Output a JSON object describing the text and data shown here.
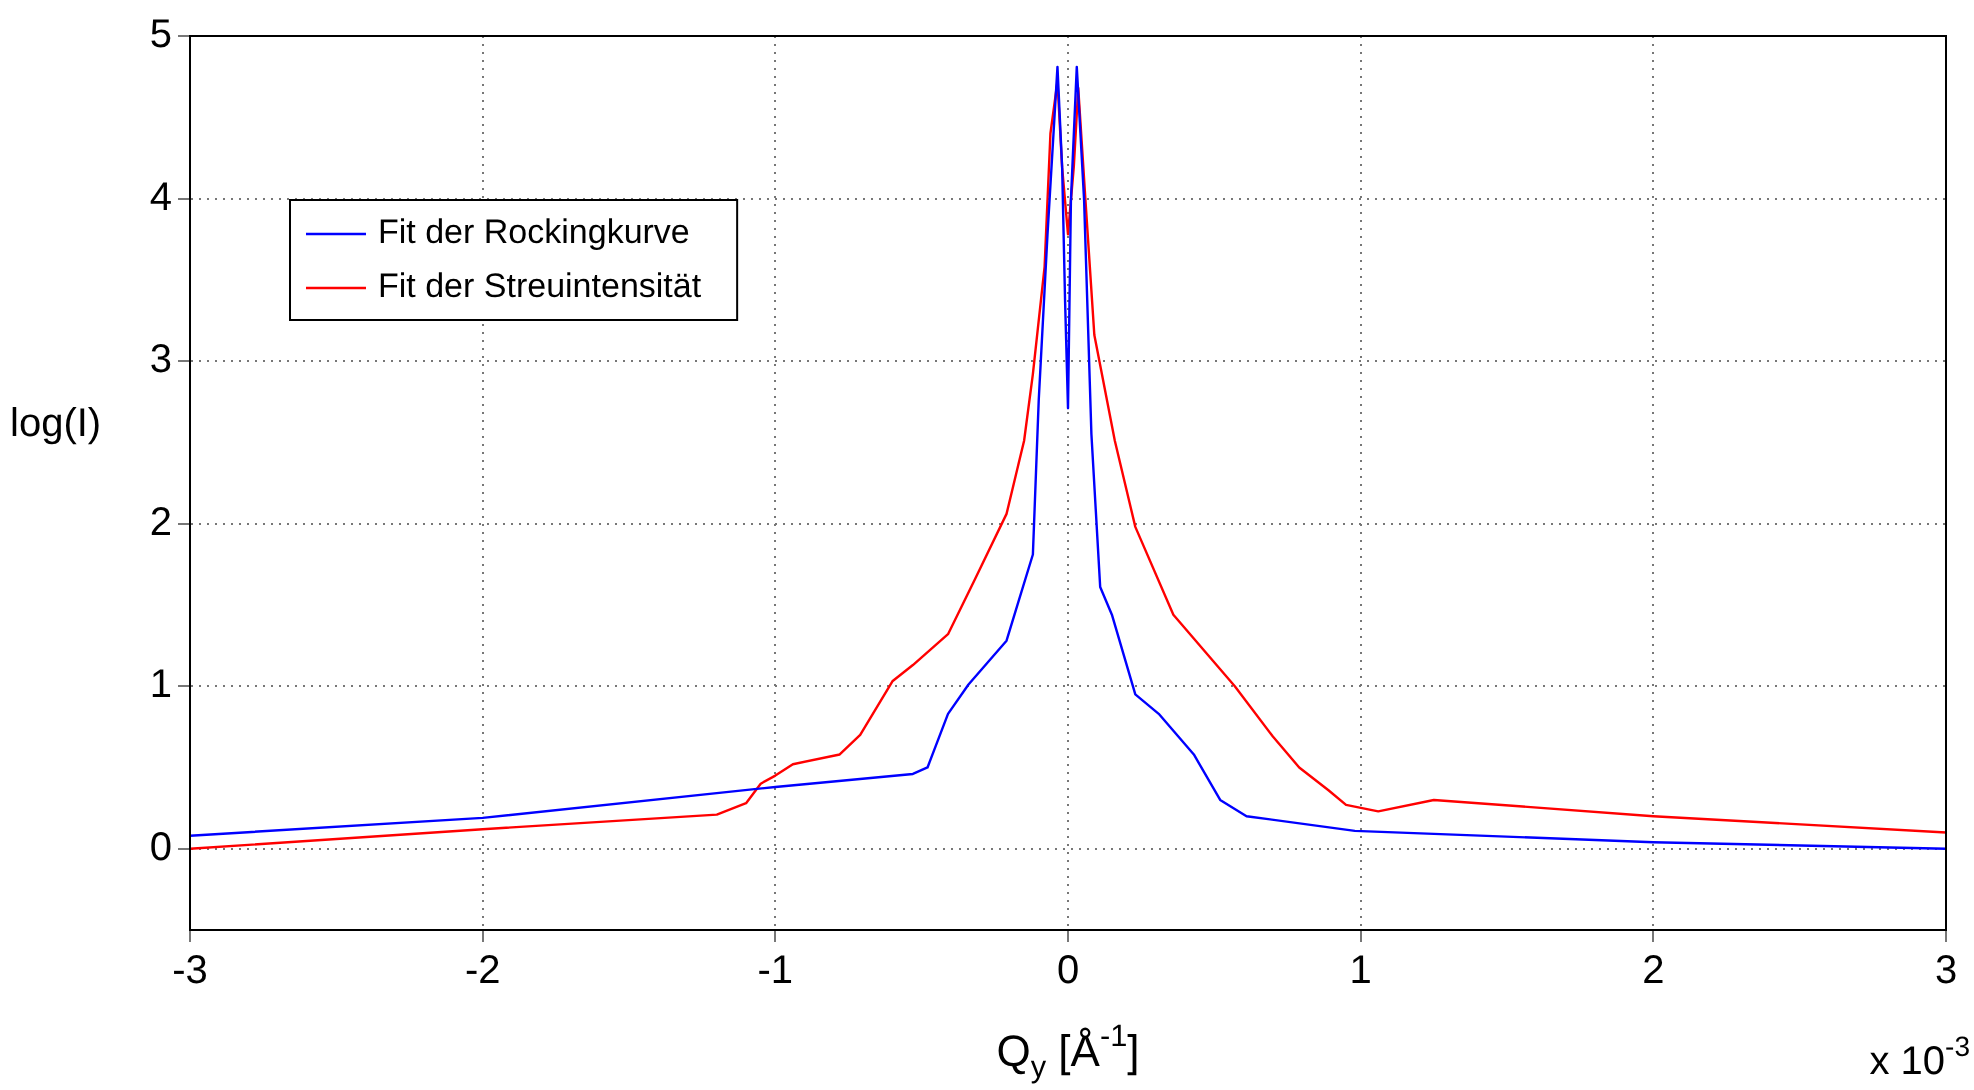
{
  "chart_data": {
    "type": "line",
    "xlabel": "Q$_{y}$ [Å$^{-1}$]",
    "ylabel": "log(I)",
    "annotations": [
      "x 10$^{-3}$"
    ],
    "xlim": [
      -3,
      3
    ],
    "xticks": [
      -3,
      -2,
      -1,
      0,
      1,
      2,
      3
    ],
    "ylim": [
      -0.5,
      5
    ],
    "yticks": [
      0,
      1,
      2,
      3,
      4,
      5
    ],
    "grid": true,
    "legend": "top left",
    "marker": "none",
    "line_style": "solid",
    "series": [
      {
        "name": "Fit der Rockingkurve",
        "color": "#0000ff",
        "x": [
          -3,
          -2,
          -1,
          -0.53,
          -0.48,
          -0.41,
          -0.34,
          -0.21,
          -0.12,
          -0.1,
          -0.07,
          -0.036,
          -0.02,
          -0.01,
          0,
          0.01,
          0.03,
          0.055,
          0.08,
          0.11,
          0.15,
          0.23,
          0.31,
          0.43,
          0.52,
          0.61,
          0.98,
          2,
          3
        ],
        "values": [
          0.08,
          0.19,
          0.38,
          0.46,
          0.5,
          0.83,
          1.01,
          1.28,
          1.81,
          2.76,
          3.78,
          4.81,
          4.19,
          3.37,
          2.71,
          3.99,
          4.81,
          3.99,
          2.55,
          1.61,
          1.44,
          0.95,
          0.83,
          0.58,
          0.3,
          0.2,
          0.11,
          0.04,
          0
        ]
      },
      {
        "name": "Fit der Streuintensität",
        "color": "#ff0000",
        "x": [
          -3,
          -2,
          -1.2,
          -1.1,
          -1.05,
          -1,
          -0.94,
          -0.78,
          -0.71,
          -0.6,
          -0.53,
          -0.41,
          -0.32,
          -0.21,
          -0.15,
          -0.12,
          -0.08,
          -0.06,
          -0.036,
          -0.02,
          0,
          0.02,
          0.035,
          0.06,
          0.09,
          0.16,
          0.23,
          0.36,
          0.57,
          0.7,
          0.79,
          0.89,
          0.95,
          1.06,
          1.25,
          2,
          3
        ],
        "values": [
          0,
          0.12,
          0.21,
          0.28,
          0.4,
          0.45,
          0.52,
          0.58,
          0.7,
          1.03,
          1.13,
          1.32,
          1.65,
          2.06,
          2.51,
          2.92,
          3.58,
          4.4,
          4.72,
          4.19,
          3.78,
          4.2,
          4.68,
          3.98,
          3.16,
          2.51,
          1.98,
          1.44,
          1,
          0.69,
          0.5,
          0.36,
          0.27,
          0.23,
          0.3,
          0.2,
          0.1
        ]
      }
    ]
  }
}
